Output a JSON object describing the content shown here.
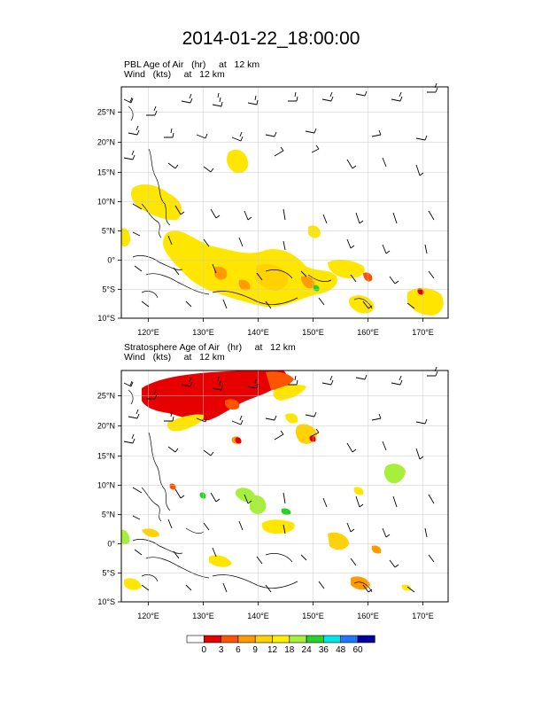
{
  "figure": {
    "title": "2014-01-22_18:00:00"
  },
  "panels": [
    {
      "id": "pbl",
      "line1": "PBL Age of Air   (hr)     at   12 km",
      "line2": "Wind   (kts)     at   12 km"
    },
    {
      "id": "strat",
      "line1": "Stratosphere Age of Air   (hr)     at   12 km",
      "line2": "Wind   (kts)     at   12 km"
    }
  ],
  "axes": {
    "lat_labels": [
      "25°N",
      "20°N",
      "15°N",
      "10°N",
      "5°N",
      "0°",
      "5°S",
      "10°S"
    ],
    "lon_labels": [
      "120°E",
      "130°E",
      "140°E",
      "150°E",
      "160°E",
      "170°E"
    ],
    "lat_values": [
      25,
      20,
      15,
      10,
      5,
      0,
      -5,
      -10
    ],
    "lon_values": [
      120,
      130,
      140,
      150,
      160,
      170
    ],
    "lon_range": [
      116,
      174
    ],
    "lat_range": [
      -10,
      29
    ]
  },
  "colorbar": {
    "labels": [
      "0",
      "3",
      "6",
      "9",
      "12",
      "18",
      "24",
      "36",
      "48",
      "60"
    ],
    "colors": [
      "#ffffff",
      "#e60000",
      "#ff5500",
      "#ff9a00",
      "#ffd200",
      "#fff000",
      "#a6f03c",
      "#28d228",
      "#00e6e6",
      "#1e78ff",
      "#0000a0"
    ]
  },
  "chart_data": {
    "type": "heatmap",
    "title": "2014-01-22_18:00:00",
    "fields": [
      "PBL Age of Air (hr) at 12 km",
      "Stratosphere Age of Air (hr) at 12 km"
    ],
    "overlay": "Wind (kts) at 12 km",
    "levels": [
      0,
      3,
      6,
      9,
      12,
      18,
      24,
      36,
      48,
      60
    ],
    "xlim": [
      116,
      174
    ],
    "ylim": [
      -10,
      29
    ]
  }
}
